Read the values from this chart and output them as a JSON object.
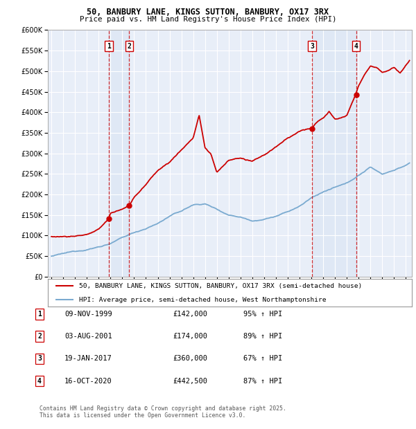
{
  "title1": "50, BANBURY LANE, KINGS SUTTON, BANBURY, OX17 3RX",
  "title2": "Price paid vs. HM Land Registry's House Price Index (HPI)",
  "bg_color": "#ffffff",
  "plot_bg_color": "#e8eef8",
  "grid_color": "#ffffff",
  "red_color": "#cc0000",
  "blue_color": "#7aaad0",
  "purchase_points": [
    {
      "num": 1,
      "x_year": 1999.86,
      "price": 142000
    },
    {
      "num": 2,
      "x_year": 2001.59,
      "price": 174000
    },
    {
      "num": 3,
      "x_year": 2017.05,
      "price": 360000
    },
    {
      "num": 4,
      "x_year": 2020.79,
      "price": 442500
    }
  ],
  "table_rows": [
    {
      "num": 1,
      "date": "09-NOV-1999",
      "price": "£142,000",
      "pct": "95% ↑ HPI"
    },
    {
      "num": 2,
      "date": "03-AUG-2001",
      "price": "£174,000",
      "pct": "89% ↑ HPI"
    },
    {
      "num": 3,
      "date": "19-JAN-2017",
      "price": "£360,000",
      "pct": "67% ↑ HPI"
    },
    {
      "num": 4,
      "date": "16-OCT-2020",
      "price": "£442,500",
      "pct": "87% ↑ HPI"
    }
  ],
  "legend_line1": "50, BANBURY LANE, KINGS SUTTON, BANBURY, OX17 3RX (semi-detached house)",
  "legend_line2": "HPI: Average price, semi-detached house, West Northamptonshire",
  "footer": "Contains HM Land Registry data © Crown copyright and database right 2025.\nThis data is licensed under the Open Government Licence v3.0.",
  "ylim": [
    0,
    600000
  ],
  "yticks": [
    0,
    50000,
    100000,
    150000,
    200000,
    250000,
    300000,
    350000,
    400000,
    450000,
    500000,
    550000,
    600000
  ],
  "xlim_start": 1994.7,
  "xlim_end": 2025.5,
  "xticks": [
    1995,
    1996,
    1997,
    1998,
    1999,
    2000,
    2001,
    2002,
    2003,
    2004,
    2005,
    2006,
    2007,
    2008,
    2009,
    2010,
    2011,
    2012,
    2013,
    2014,
    2015,
    2016,
    2017,
    2018,
    2019,
    2020,
    2021,
    2022,
    2023,
    2024,
    2025
  ]
}
